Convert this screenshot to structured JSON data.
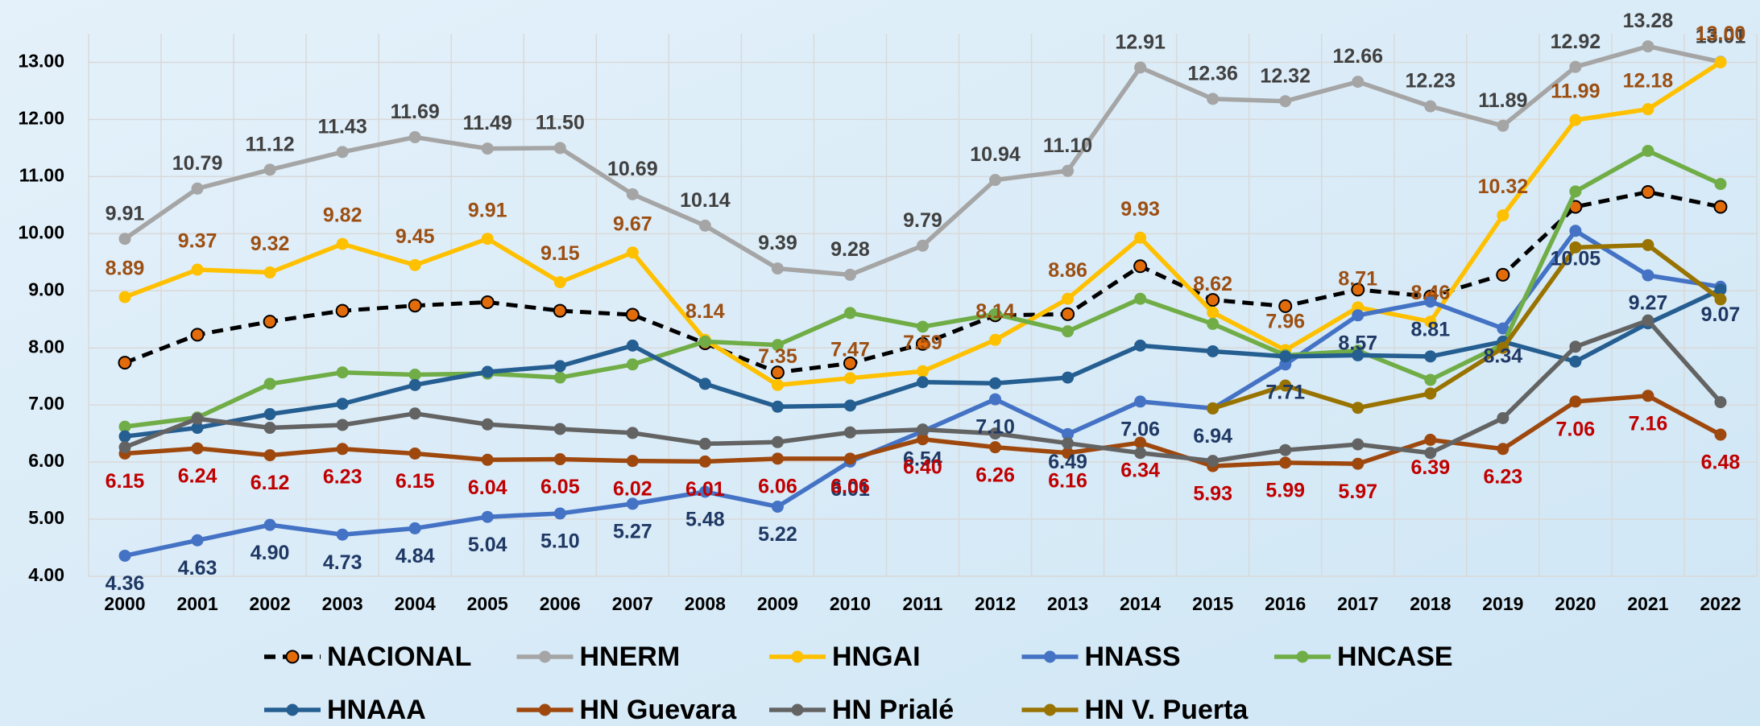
{
  "chart_data": {
    "type": "line",
    "categories": [
      "2000",
      "2001",
      "2002",
      "2003",
      "2004",
      "2005",
      "2006",
      "2007",
      "2008",
      "2009",
      "2010",
      "2011",
      "2012",
      "2013",
      "2014",
      "2015",
      "2016",
      "2017",
      "2018",
      "2019",
      "2020",
      "2021",
      "2022"
    ],
    "ylim": [
      4,
      13.5
    ],
    "yticks": [
      {
        "value": 4,
        "label": "4.00"
      },
      {
        "value": 5,
        "label": "5.00"
      },
      {
        "value": 6,
        "label": "6.00"
      },
      {
        "value": 7,
        "label": "7.00"
      },
      {
        "value": 8,
        "label": "8.00"
      },
      {
        "value": 9,
        "label": "9.00"
      },
      {
        "value": 10,
        "label": "10.00"
      },
      {
        "value": 11,
        "label": "11.00"
      },
      {
        "value": 12,
        "label": "12.00"
      },
      {
        "value": 13,
        "label": "13.00"
      }
    ],
    "grid": true,
    "legend": "bottom",
    "series": [
      {
        "name": "NACIONAL",
        "color": "#000000",
        "marker_color": "#e36c0a",
        "dashed": true,
        "values": [
          7.74,
          8.23,
          8.46,
          8.65,
          8.74,
          8.8,
          8.65,
          8.58,
          8.08,
          7.57,
          7.73,
          8.07,
          8.57,
          8.59,
          9.43,
          8.84,
          8.73,
          9.02,
          8.9,
          9.28,
          10.47,
          10.73,
          10.47
        ]
      },
      {
        "name": "HNERM",
        "color": "#a5a5a5",
        "label_color": "#404040",
        "values": [
          9.91,
          10.79,
          11.12,
          11.43,
          11.69,
          11.49,
          11.5,
          10.69,
          10.14,
          9.39,
          9.28,
          9.79,
          10.94,
          11.1,
          12.91,
          12.36,
          12.32,
          12.66,
          12.23,
          11.89,
          12.92,
          13.28,
          13.01
        ],
        "value_labels": [
          "9.91",
          "10.79",
          "11.12",
          "11.43",
          "11.69",
          "11.49",
          "11.50",
          "10.69",
          "10.14",
          "9.39",
          "9.28",
          "9.79",
          "10.94",
          "11.10",
          "12.91",
          "12.36",
          "12.32",
          "12.66",
          "12.23",
          "11.89",
          "12.92",
          "13.28",
          "13.01"
        ]
      },
      {
        "name": "HNGAI",
        "color": "#ffc000",
        "label_color": "#9c4f12",
        "values": [
          8.89,
          9.37,
          9.32,
          9.82,
          9.45,
          9.91,
          9.15,
          9.67,
          8.14,
          7.35,
          7.47,
          7.59,
          8.14,
          8.86,
          9.93,
          8.62,
          7.96,
          8.71,
          8.46,
          10.32,
          11.99,
          12.18,
          13.0
        ],
        "value_labels": [
          "8.89",
          "9.37",
          "9.32",
          "9.82",
          "9.45",
          "9.91",
          "9.15",
          "9.67",
          "8.14",
          "7.35",
          "7.47",
          "7.59",
          "8.14",
          "8.86",
          "9.93",
          "8.62",
          "7.96",
          "8.71",
          "8.46",
          "10.32",
          "11.99",
          "12.18",
          "13.00"
        ]
      },
      {
        "name": "HNASS",
        "color": "#4472c4",
        "label_color": "#1f3864",
        "values": [
          4.36,
          4.63,
          4.9,
          4.73,
          4.84,
          5.04,
          5.1,
          5.27,
          5.48,
          5.22,
          6.01,
          6.54,
          7.1,
          6.49,
          7.06,
          6.94,
          7.71,
          8.57,
          8.81,
          8.34,
          10.05,
          9.27,
          9.07
        ],
        "value_labels": [
          "4.36",
          "4.63",
          "4.90",
          "4.73",
          "4.84",
          "5.04",
          "5.10",
          "5.27",
          "5.48",
          "5.22",
          "6.01",
          "6.54",
          "7.10",
          "6.49",
          "7.06",
          "6.94",
          "7.71",
          "8.57",
          "8.81",
          "8.34",
          "10.05",
          "9.27",
          "9.07"
        ]
      },
      {
        "name": "HNCASE",
        "color": "#70ad47",
        "values": [
          6.62,
          6.78,
          7.37,
          7.57,
          7.53,
          7.55,
          7.48,
          7.71,
          8.11,
          8.05,
          8.61,
          8.37,
          8.59,
          8.29,
          8.86,
          8.42,
          7.87,
          7.95,
          7.44,
          8.06,
          10.74,
          11.45,
          10.87
        ]
      },
      {
        "name": "HNAAA",
        "color": "#255e91",
        "values": [
          6.45,
          6.6,
          6.84,
          7.02,
          7.35,
          7.58,
          7.68,
          8.04,
          7.37,
          6.97,
          6.99,
          7.4,
          7.38,
          7.48,
          8.04,
          7.94,
          7.85,
          7.87,
          7.85,
          8.11,
          7.76,
          8.43,
          9.02
        ]
      },
      {
        "name": "HN Guevara",
        "color": "#9e480e",
        "label_color": "#c00000",
        "values": [
          6.15,
          6.24,
          6.12,
          6.23,
          6.15,
          6.04,
          6.05,
          6.02,
          6.01,
          6.06,
          6.06,
          6.4,
          6.26,
          6.16,
          6.34,
          5.93,
          5.99,
          5.97,
          6.39,
          6.23,
          7.06,
          7.16,
          6.48
        ],
        "value_labels": [
          "6.15",
          "6.24",
          "6.12",
          "6.23",
          "6.15",
          "6.04",
          "6.05",
          "6.02",
          "6.01",
          "6.06",
          "6.06",
          "6.40",
          "6.26",
          "6.16",
          "6.34",
          "5.93",
          "5.99",
          "5.97",
          "6.39",
          "6.23",
          "7.06",
          "7.16",
          "6.48"
        ]
      },
      {
        "name": "HN Prialé",
        "color": "#636363",
        "values": [
          6.26,
          6.76,
          6.6,
          6.65,
          6.85,
          6.66,
          6.58,
          6.51,
          6.32,
          6.35,
          6.52,
          6.57,
          6.5,
          6.33,
          6.16,
          6.02,
          6.21,
          6.31,
          6.16,
          6.77,
          8.02,
          8.48,
          7.05
        ]
      },
      {
        "name": "HN V. Puerta",
        "color": "#997300",
        "values": [
          null,
          null,
          null,
          null,
          null,
          null,
          null,
          null,
          null,
          null,
          null,
          null,
          null,
          null,
          null,
          6.94,
          7.34,
          6.95,
          7.2,
          8.0,
          9.76,
          9.8,
          8.85
        ]
      }
    ]
  }
}
